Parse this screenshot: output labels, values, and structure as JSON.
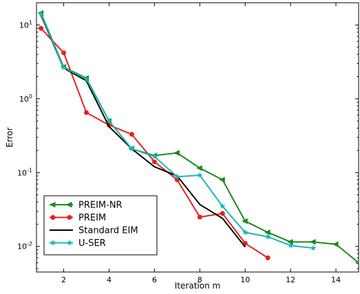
{
  "chart_data": {
    "type": "line",
    "xlabel": "Iteration m",
    "ylabel": "Error",
    "y_scale": "log",
    "xlim": [
      0.8,
      15.0
    ],
    "ylim": [
      0.0045,
      20
    ],
    "x_ticks": [
      2,
      4,
      6,
      8,
      10,
      12,
      14
    ],
    "x_tick_labels": [
      "2",
      "4",
      "6",
      "8",
      "10",
      "12",
      "14"
    ],
    "y_ticks": [
      0.01,
      0.1,
      1,
      10
    ],
    "y_tick_labels": [
      {
        "base": "10",
        "exp": "-2"
      },
      {
        "base": "10",
        "exp": "-1"
      },
      {
        "base": "10",
        "exp": "0"
      },
      {
        "base": "10",
        "exp": "1"
      }
    ],
    "grid": false,
    "legend_position": "lower-left",
    "series": [
      {
        "name": "PREIM-NR",
        "color": "#1a8a1a",
        "marker": "left-triangle",
        "x": [
          1,
          2,
          3,
          4,
          5,
          6,
          7,
          8,
          9,
          10,
          11,
          12,
          13,
          14,
          15
        ],
        "y": [
          14.5,
          2.7,
          1.9,
          0.5,
          0.21,
          0.17,
          0.185,
          0.115,
          0.08,
          0.022,
          0.0155,
          0.0115,
          0.0115,
          0.0107,
          0.006
        ]
      },
      {
        "name": "PREIM",
        "color": "#e8201c",
        "marker": "circle",
        "x": [
          1,
          2,
          3,
          4,
          5,
          6,
          7,
          8,
          9,
          10,
          11
        ],
        "y": [
          9.0,
          4.2,
          0.65,
          0.44,
          0.33,
          0.14,
          0.08,
          0.025,
          0.028,
          0.011,
          0.007
        ]
      },
      {
        "name": "Standard EIM",
        "color": "#000000",
        "marker": "none",
        "x": [
          1,
          2,
          3,
          4,
          5,
          6,
          7,
          8,
          9,
          10
        ],
        "y": [
          13.5,
          2.6,
          1.75,
          0.42,
          0.21,
          0.12,
          0.09,
          0.037,
          0.024,
          0.0098
        ]
      },
      {
        "name": "U-SER",
        "color": "#1ab8b8",
        "marker": "star",
        "x": [
          1,
          2,
          3,
          4,
          5,
          6,
          7,
          8,
          9,
          10,
          11,
          12,
          13
        ],
        "y": [
          14.0,
          2.65,
          1.85,
          0.5,
          0.21,
          0.165,
          0.088,
          0.092,
          0.035,
          0.0155,
          0.0135,
          0.0103,
          0.0095
        ]
      }
    ]
  }
}
